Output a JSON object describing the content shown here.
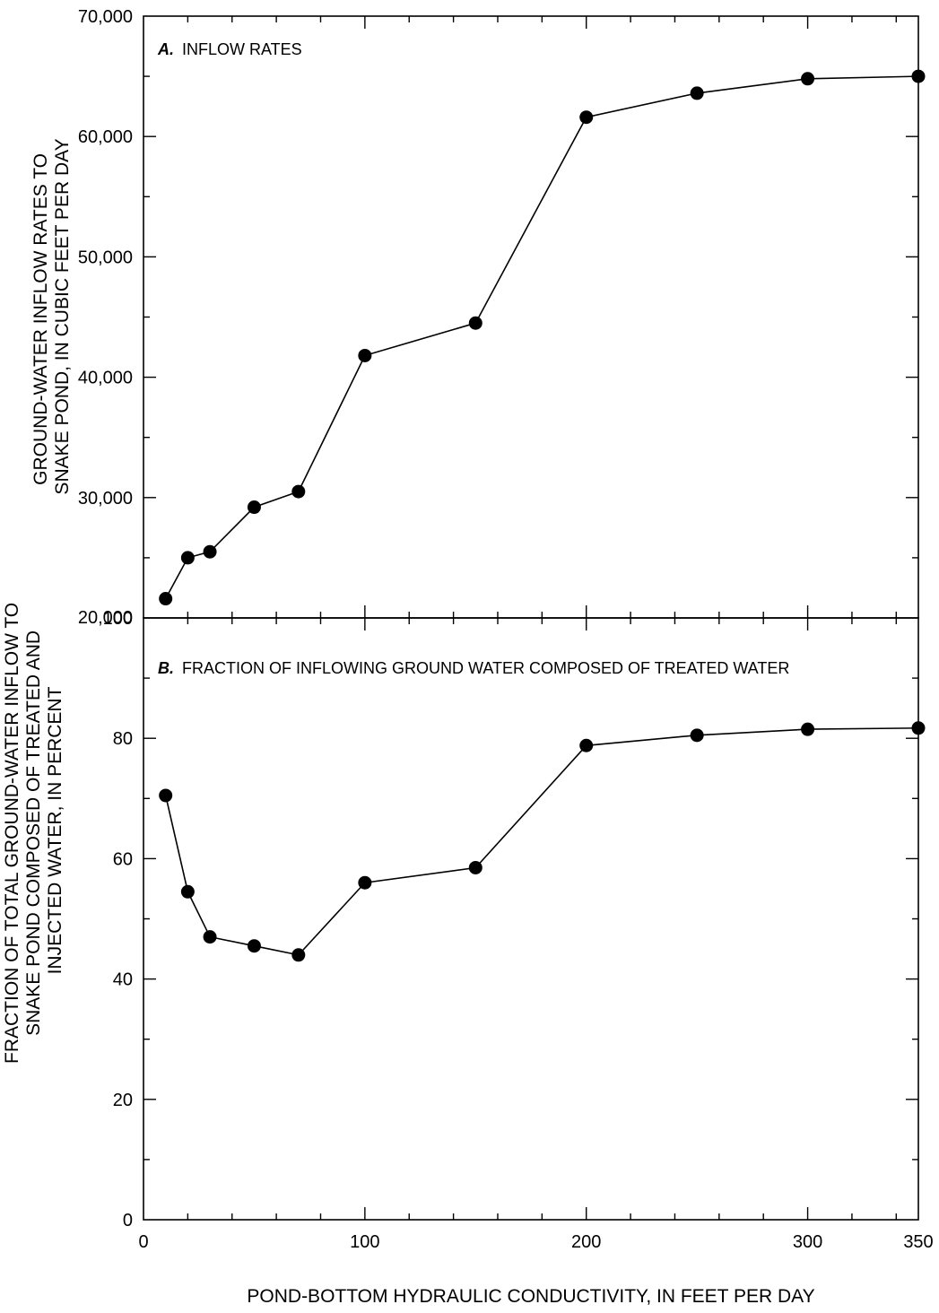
{
  "chart_data": [
    {
      "type": "line",
      "panel_letter": "A.",
      "title": "INFLOW RATES",
      "xlabel": "",
      "ylabel": [
        "GROUND-WATER INFLOW RATES TO",
        "SNAKE POND, IN CUBIC FEET PER DAY"
      ],
      "xlim": [
        0,
        350
      ],
      "ylim": [
        20000,
        70000
      ],
      "y_ticks": [
        20000,
        30000,
        40000,
        50000,
        60000,
        70000
      ],
      "y_tick_labels": [
        "20,000",
        "30,000",
        "40,000",
        "50,000",
        "60,000",
        "70,000"
      ],
      "x_tick_labels": [],
      "grid": false,
      "marker": "filled-circle",
      "x": [
        10,
        20,
        30,
        50,
        70,
        100,
        150,
        200,
        250,
        300,
        350
      ],
      "series": [
        {
          "values": [
            21600,
            25000,
            25500,
            29200,
            30500,
            41800,
            44500,
            61600,
            63600,
            64800,
            65000
          ]
        }
      ]
    },
    {
      "type": "line",
      "panel_letter": "B.",
      "title": "FRACTION OF INFLOWING GROUND WATER COMPOSED OF TREATED WATER",
      "xlabel": "POND-BOTTOM HYDRAULIC CONDUCTIVITY, IN FEET PER DAY",
      "ylabel": [
        "FRACTION OF TOTAL GROUND-WATER INFLOW TO",
        "SNAKE POND COMPOSED OF TREATED AND",
        "INJECTED WATER, IN PERCENT"
      ],
      "xlim": [
        0,
        350
      ],
      "ylim": [
        0,
        100
      ],
      "y_ticks": [
        0,
        20,
        40,
        60,
        80,
        100
      ],
      "y_tick_labels": [
        "0",
        "20",
        "40",
        "60",
        "80",
        "100"
      ],
      "x_ticks": [
        0,
        100,
        200,
        300,
        350
      ],
      "x_tick_labels": [
        "0",
        "100",
        "200",
        "300",
        "350"
      ],
      "grid": false,
      "marker": "filled-circle",
      "x": [
        10,
        20,
        30,
        50,
        70,
        100,
        150,
        200,
        250,
        300,
        350
      ],
      "series": [
        {
          "values": [
            70.5,
            54.5,
            47.0,
            45.5,
            44.0,
            56.0,
            58.5,
            78.8,
            80.5,
            81.5,
            81.7
          ]
        }
      ]
    }
  ]
}
